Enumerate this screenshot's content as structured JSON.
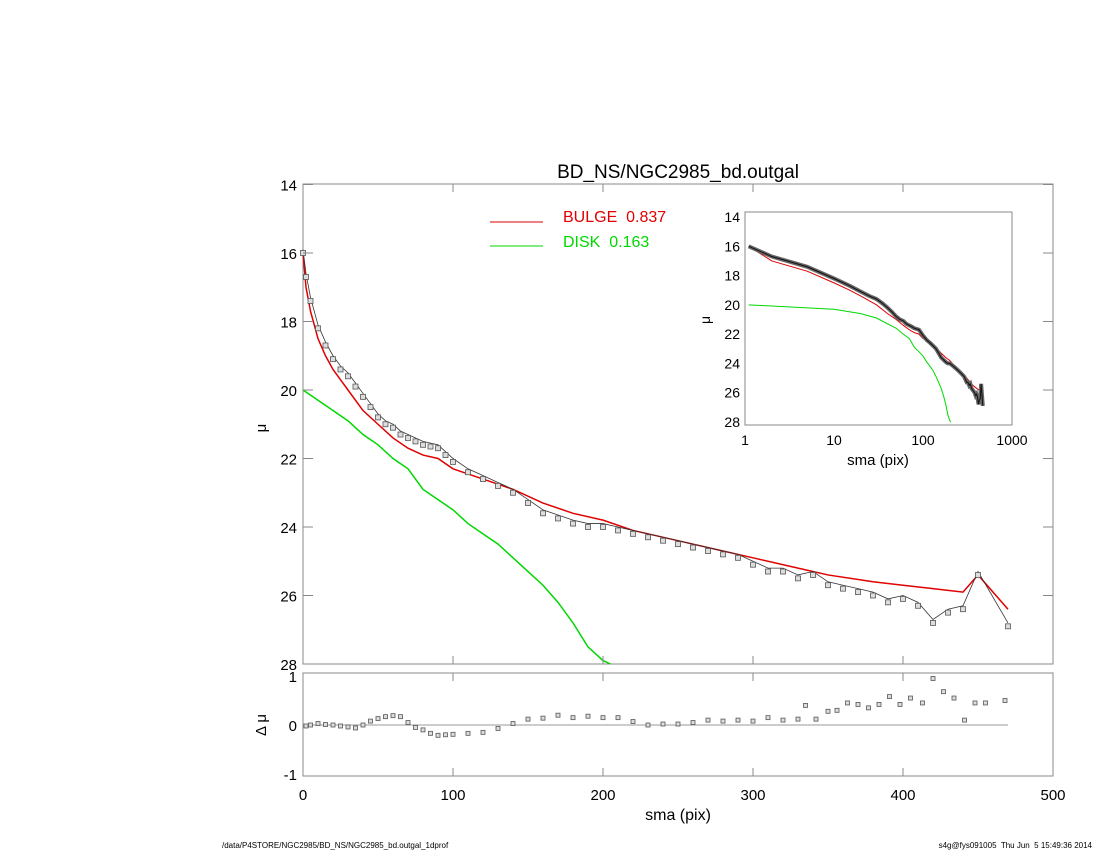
{
  "chart_data": [
    {
      "type": "scatter",
      "title": "BD_NS/NGC2985_bd.outgal",
      "xlabel": "sma (pix)",
      "ylabel": "μ",
      "xlim": [
        0,
        500
      ],
      "ylim": [
        28,
        14
      ],
      "xticks": [
        "0",
        "100",
        "200",
        "300",
        "400",
        "500"
      ],
      "yticks": [
        "14",
        "16",
        "18",
        "20",
        "22",
        "24",
        "26",
        "28"
      ],
      "legend": [
        {
          "label": "BULGE  0.837",
          "color": "#e00000"
        },
        {
          "label": "DISK  0.163",
          "color": "#00d800"
        }
      ],
      "observed": {
        "x": [
          0,
          2,
          5,
          10,
          15,
          20,
          25,
          30,
          35,
          40,
          45,
          50,
          55,
          60,
          65,
          70,
          75,
          80,
          85,
          90,
          95,
          100,
          110,
          120,
          130,
          140,
          150,
          160,
          170,
          180,
          190,
          200,
          210,
          220,
          230,
          240,
          250,
          260,
          270,
          280,
          290,
          300,
          310,
          320,
          330,
          340,
          350,
          360,
          370,
          380,
          390,
          400,
          410,
          420,
          430,
          440,
          450,
          470
        ],
        "y": [
          16,
          16.7,
          17.4,
          18.2,
          18.7,
          19.1,
          19.4,
          19.6,
          19.9,
          20.2,
          20.5,
          20.8,
          21.0,
          21.1,
          21.3,
          21.4,
          21.5,
          21.6,
          21.65,
          21.7,
          21.9,
          22.1,
          22.4,
          22.6,
          22.8,
          23.0,
          23.3,
          23.6,
          23.75,
          23.9,
          24.0,
          24.0,
          24.1,
          24.2,
          24.3,
          24.4,
          24.5,
          24.6,
          24.7,
          24.8,
          24.9,
          25.1,
          25.3,
          25.3,
          25.5,
          25.4,
          25.7,
          25.8,
          25.9,
          26.0,
          26.2,
          26.1,
          26.3,
          26.8,
          26.5,
          26.4,
          25.4,
          26.9
        ]
      },
      "bulge": {
        "x": [
          0,
          2,
          5,
          10,
          15,
          20,
          30,
          40,
          50,
          60,
          70,
          80,
          90,
          100,
          120,
          140,
          160,
          180,
          200,
          220,
          250,
          280,
          300,
          330,
          350,
          380,
          400,
          420,
          440,
          450,
          470
        ],
        "y": [
          16,
          17.0,
          17.7,
          18.5,
          19.0,
          19.4,
          20.0,
          20.6,
          21.0,
          21.4,
          21.7,
          21.9,
          22.0,
          22.3,
          22.6,
          22.9,
          23.3,
          23.6,
          23.8,
          24.1,
          24.4,
          24.7,
          24.9,
          25.2,
          25.4,
          25.6,
          25.7,
          25.8,
          25.9,
          25.4,
          26.4
        ]
      },
      "disk": {
        "x": [
          0,
          10,
          20,
          30,
          40,
          50,
          60,
          70,
          80,
          90,
          100,
          110,
          120,
          130,
          140,
          150,
          160,
          170,
          180,
          190,
          200,
          205
        ],
        "y": [
          20,
          20.3,
          20.6,
          20.9,
          21.3,
          21.6,
          22.0,
          22.3,
          22.9,
          23.2,
          23.5,
          23.9,
          24.2,
          24.5,
          24.9,
          25.3,
          25.7,
          26.2,
          26.8,
          27.5,
          27.9,
          28
        ]
      }
    },
    {
      "type": "line",
      "name": "inset",
      "xlabel": "sma (pix)",
      "ylabel": "μ",
      "xscale": "log",
      "xlim": [
        1,
        1000
      ],
      "ylim": [
        28,
        14
      ],
      "xticks": [
        "1",
        "10",
        "100",
        "1000"
      ],
      "yticks": [
        "14",
        "16",
        "18",
        "20",
        "22",
        "24",
        "26",
        "28"
      ]
    },
    {
      "type": "scatter",
      "name": "residuals",
      "xlabel": "sma (pix)",
      "ylabel": "Δ μ",
      "xlim": [
        0,
        500
      ],
      "ylim": [
        -1,
        1
      ],
      "yticks": [
        "1",
        "0",
        "-1"
      ],
      "x": [
        2,
        5,
        10,
        15,
        20,
        25,
        30,
        35,
        40,
        45,
        50,
        55,
        60,
        65,
        70,
        75,
        80,
        85,
        90,
        95,
        100,
        110,
        120,
        130,
        140,
        150,
        160,
        170,
        180,
        190,
        200,
        210,
        220,
        230,
        240,
        250,
        260,
        270,
        280,
        290,
        300,
        310,
        320,
        330,
        335,
        342,
        350,
        356,
        363,
        370,
        377,
        384,
        391,
        398,
        405,
        413,
        420,
        427,
        434,
        441,
        448,
        455,
        468
      ],
      "y": [
        -0.02,
        0.0,
        0.03,
        0.01,
        0,
        -0.02,
        -0.04,
        -0.06,
        0.0,
        0.08,
        0.13,
        0.17,
        0.19,
        0.17,
        0.05,
        -0.05,
        -0.1,
        -0.17,
        -0.21,
        -0.2,
        -0.19,
        -0.17,
        -0.15,
        -0.07,
        0.03,
        0.12,
        0.14,
        0.2,
        0.15,
        0.18,
        0.15,
        0.15,
        0.07,
        0.0,
        0.02,
        0.02,
        0.05,
        0.1,
        0.08,
        0.1,
        0.08,
        0.15,
        0.1,
        0.12,
        0.4,
        0.12,
        0.28,
        0.3,
        0.45,
        0.42,
        0.35,
        0.42,
        0.58,
        0.42,
        0.55,
        0.45,
        0.95,
        0.68,
        0.55,
        0.1,
        0.45,
        0.45,
        0.5
      ]
    }
  ],
  "footer": {
    "left": "/data/P4STORE/NGC2985/BD_NS/NGC2985_bd.outgal_1dprof",
    "right": "s4g@fys091005  Thu Jun  5 15:49:36 2014"
  }
}
